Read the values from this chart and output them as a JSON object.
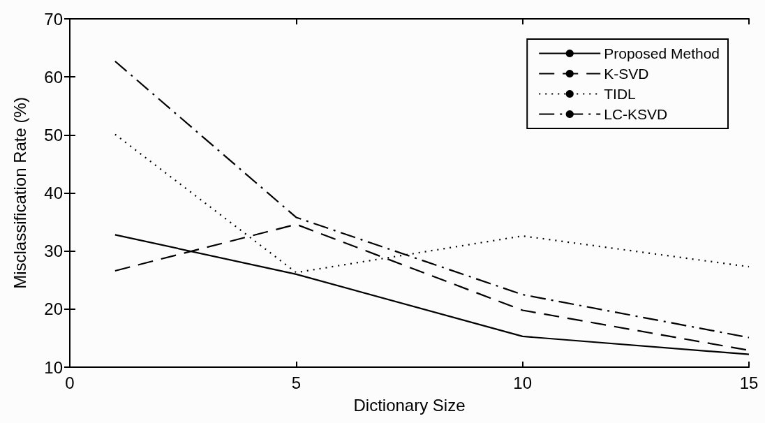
{
  "chart_data": {
    "type": "line",
    "xlabel": "Dictionary Size",
    "ylabel": "Misclassification Rate (%)",
    "xlim": [
      0,
      15
    ],
    "xticks": [
      0,
      5,
      10,
      15
    ],
    "ylim": [
      10,
      70
    ],
    "yticks": [
      10,
      20,
      30,
      40,
      50,
      60,
      70
    ],
    "grid": false,
    "legend": "top right",
    "marker": "none",
    "series": [
      {
        "name": "Proposed Method",
        "color": "#000000",
        "line_style": "solid",
        "x": [
          1,
          5,
          10,
          15
        ],
        "values": [
          32.8,
          26.0,
          15.3,
          12.2
        ]
      },
      {
        "name": "K-SVD",
        "color": "#000000",
        "line_style": "dashed",
        "x": [
          1,
          5,
          10,
          15
        ],
        "values": [
          26.6,
          34.6,
          19.8,
          12.9
        ]
      },
      {
        "name": "TIDL",
        "color": "#000000",
        "line_style": "dotted",
        "x": [
          1,
          5,
          10,
          15
        ],
        "values": [
          50.1,
          26.3,
          32.6,
          27.3
        ]
      },
      {
        "name": "LC-KSVD",
        "color": "#000000",
        "line_style": "dashdot",
        "x": [
          1,
          5,
          10,
          15
        ],
        "values": [
          62.7,
          35.8,
          22.5,
          15.1
        ]
      }
    ]
  }
}
